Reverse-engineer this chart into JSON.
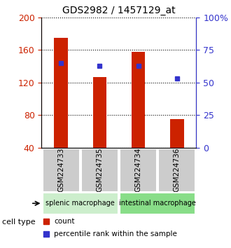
{
  "title": "GDS2982 / 1457129_at",
  "samples": [
    "GSM224733",
    "GSM224735",
    "GSM224734",
    "GSM224736"
  ],
  "counts": [
    175,
    127,
    158,
    75
  ],
  "percentiles": [
    65,
    63,
    63,
    53
  ],
  "ylim_left": [
    40,
    200
  ],
  "ylim_right": [
    0,
    100
  ],
  "yticks_left": [
    40,
    80,
    120,
    160,
    200
  ],
  "yticks_right": [
    0,
    25,
    50,
    75,
    100
  ],
  "ytick_labels_right": [
    "0",
    "25",
    "50",
    "75",
    "100%"
  ],
  "bar_color": "#CC2200",
  "dot_color": "#3333CC",
  "grid_color": "#000000",
  "groups": [
    {
      "label": "splenic macrophage",
      "samples": [
        "GSM224733",
        "GSM224735"
      ],
      "color": "#CCEECC"
    },
    {
      "label": "intestinal macrophage",
      "samples": [
        "GSM224734",
        "GSM224736"
      ],
      "color": "#88DD88"
    }
  ],
  "legend_items": [
    {
      "label": "count",
      "color": "#CC2200",
      "marker": "s"
    },
    {
      "label": "percentile rank within the sample",
      "color": "#3333CC",
      "marker": "s"
    }
  ],
  "bar_width": 0.35,
  "sample_label_bg": "#CCCCCC"
}
